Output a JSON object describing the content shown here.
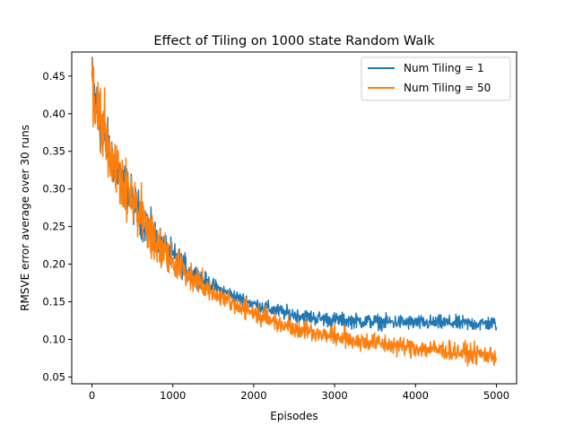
{
  "chart_data": {
    "type": "line",
    "title": "Effect of Tiling on 1000 state Random Walk",
    "xlabel": "Episodes",
    "ylabel": "RMSVE error average over 30 runs",
    "xlim": [
      -250,
      5250
    ],
    "ylim": [
      0.041,
      0.482
    ],
    "grid": false,
    "legend_position": "top-right",
    "x_ticks": [
      0,
      1000,
      2000,
      3000,
      4000,
      5000
    ],
    "x_tick_labels": [
      "0",
      "1000",
      "2000",
      "3000",
      "4000",
      "5000"
    ],
    "y_ticks": [
      0.05,
      0.1,
      0.15,
      0.2,
      0.25,
      0.3,
      0.35,
      0.4,
      0.45
    ],
    "y_tick_labels": [
      "0.05",
      "0.10",
      "0.15",
      "0.20",
      "0.25",
      "0.30",
      "0.35",
      "0.40",
      "0.45"
    ],
    "series": [
      {
        "name": "Num Tiling = 1",
        "color": "#1f77b4",
        "noise": 0.006,
        "x": [
          0,
          100,
          200,
          300,
          400,
          500,
          600,
          700,
          800,
          900,
          1000,
          1200,
          1400,
          1600,
          1800,
          2000,
          2200,
          2400,
          2600,
          2800,
          3000,
          3200,
          3400,
          3600,
          3800,
          4000,
          4200,
          4400,
          4600,
          4800,
          5000
        ],
        "y": [
          0.445,
          0.385,
          0.355,
          0.33,
          0.305,
          0.285,
          0.265,
          0.248,
          0.232,
          0.22,
          0.21,
          0.192,
          0.177,
          0.165,
          0.155,
          0.147,
          0.14,
          0.135,
          0.131,
          0.128,
          0.126,
          0.125,
          0.124,
          0.123,
          0.123,
          0.122,
          0.122,
          0.122,
          0.121,
          0.121,
          0.121
        ]
      },
      {
        "name": "Num Tiling = 50",
        "color": "#ff7f0e",
        "noise": 0.008,
        "x": [
          0,
          100,
          200,
          300,
          400,
          500,
          600,
          700,
          800,
          900,
          1000,
          1200,
          1400,
          1600,
          1800,
          2000,
          2200,
          2400,
          2600,
          2800,
          3000,
          3200,
          3400,
          3600,
          3800,
          4000,
          4200,
          4400,
          4600,
          4800,
          5000
        ],
        "y": [
          0.44,
          0.39,
          0.358,
          0.33,
          0.305,
          0.283,
          0.263,
          0.245,
          0.228,
          0.214,
          0.203,
          0.185,
          0.17,
          0.157,
          0.145,
          0.135,
          0.126,
          0.119,
          0.113,
          0.108,
          0.104,
          0.1,
          0.097,
          0.094,
          0.091,
          0.089,
          0.087,
          0.085,
          0.082,
          0.08,
          0.078
        ]
      }
    ]
  }
}
